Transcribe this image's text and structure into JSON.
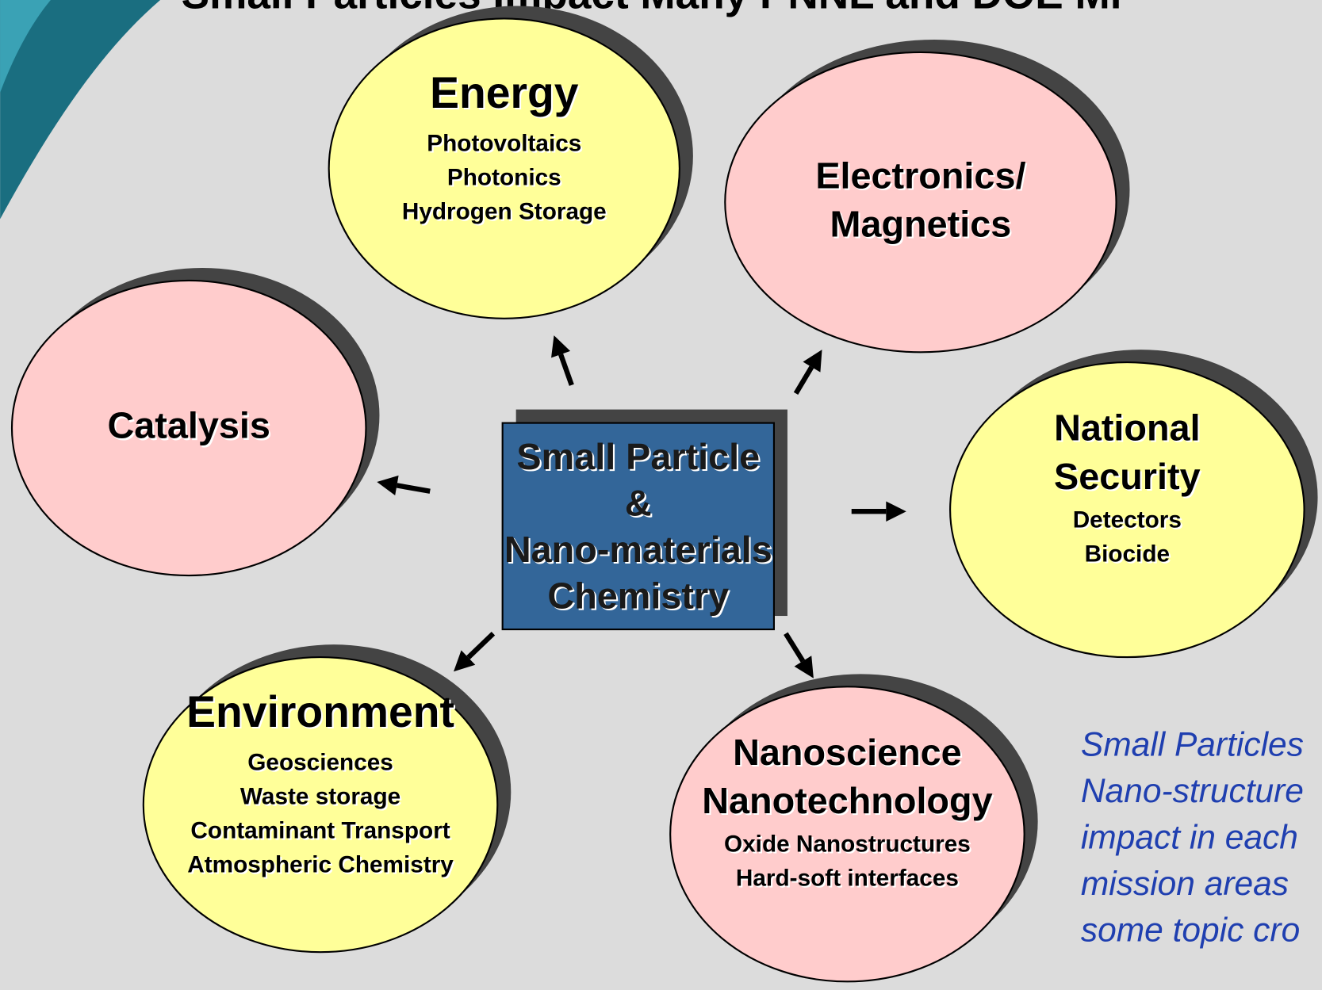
{
  "header": {
    "title": "Small Particles Impact Many PNNL and DOE Mi"
  },
  "center": {
    "lines": [
      "Small Particle",
      "&",
      "Nano-materials",
      "Chemistry"
    ]
  },
  "nodes": [
    {
      "title": [
        "Energy"
      ],
      "items": [
        "Photovoltaics",
        "Photonics",
        "Hydrogen Storage"
      ]
    },
    {
      "title": [
        "Electronics/",
        "Magnetics"
      ],
      "items": []
    },
    {
      "title": [
        "Catalysis"
      ],
      "items": []
    },
    {
      "title": [
        "National",
        "Security"
      ],
      "items": [
        "Detectors",
        "Biocide"
      ]
    },
    {
      "title": [
        "Environment"
      ],
      "items": [
        "Geosciences",
        "Waste storage",
        "Contaminant Transport",
        "Atmospheric Chemistry"
      ]
    },
    {
      "title": [
        "Nanoscience",
        "Nanotechnology"
      ],
      "items": [
        "Oxide Nanostructures",
        "Hard-soft interfaces"
      ]
    }
  ],
  "note": {
    "lines": [
      "Small Particles",
      "Nano-structure",
      "impact in each",
      "mission areas",
      "some topic cro"
    ]
  }
}
